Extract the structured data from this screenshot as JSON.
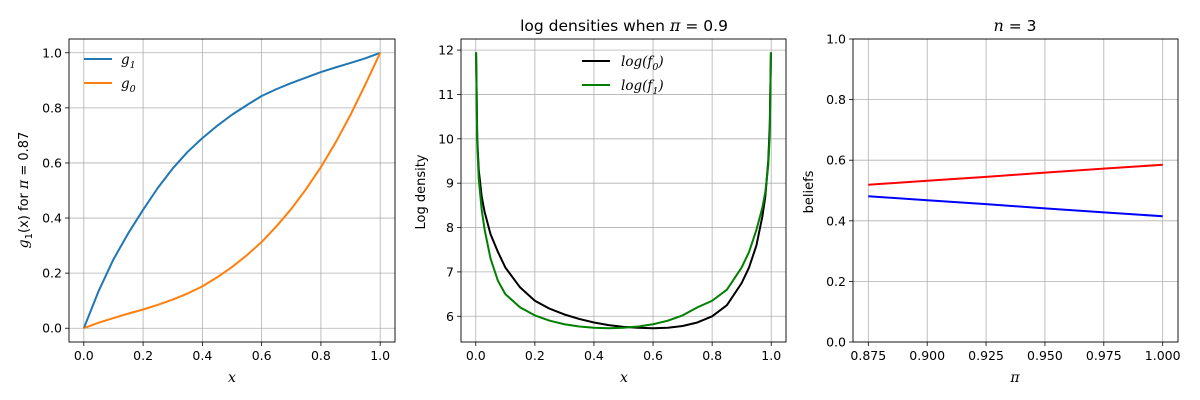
{
  "chart_data": [
    {
      "type": "line",
      "title": "",
      "xlabel": "x",
      "ylabel": "g1(x) for π = 0.87",
      "ylabel_parts": {
        "f": "g",
        "sub": "1",
        "mid": "(x) for ",
        "pi": "π",
        "eq": " = 0.87"
      },
      "xlim": [
        -0.05,
        1.05
      ],
      "ylim": [
        -0.05,
        1.05
      ],
      "xticks": [
        "0.0",
        "0.2",
        "0.4",
        "0.6",
        "0.8",
        "1.0"
      ],
      "yticks": [
        "0.0",
        "0.2",
        "0.4",
        "0.6",
        "0.8",
        "1.0"
      ],
      "grid": true,
      "legend_position": "upper-left",
      "x": [
        0,
        0.05,
        0.1,
        0.15,
        0.2,
        0.25,
        0.3,
        0.35,
        0.4,
        0.45,
        0.5,
        0.55,
        0.6,
        0.65,
        0.7,
        0.75,
        0.8,
        0.85,
        0.9,
        0.95,
        1.0
      ],
      "series": [
        {
          "name": "g1",
          "sub": "1",
          "color": "#1f77b4",
          "values": [
            0.0,
            0.135,
            0.25,
            0.345,
            0.43,
            0.51,
            0.58,
            0.64,
            0.69,
            0.735,
            0.775,
            0.81,
            0.843,
            0.868,
            0.89,
            0.91,
            0.93,
            0.947,
            0.963,
            0.98,
            1.0
          ]
        },
        {
          "name": "g0",
          "sub": "0",
          "color": "#ff7f0e",
          "values": [
            0.0,
            0.02,
            0.037,
            0.053,
            0.068,
            0.085,
            0.104,
            0.126,
            0.152,
            0.185,
            0.222,
            0.265,
            0.313,
            0.37,
            0.433,
            0.505,
            0.585,
            0.675,
            0.775,
            0.885,
            1.0
          ]
        }
      ]
    },
    {
      "type": "line",
      "title": "log densities when π = 0.9",
      "title_parts": {
        "pre": "log densities when ",
        "pi": "π",
        "post": " = 0.9"
      },
      "xlabel": "x",
      "ylabel": "Log density",
      "xlim": [
        -0.05,
        1.05
      ],
      "ylim": [
        5.42,
        12.25
      ],
      "xticks": [
        "0.0",
        "0.2",
        "0.4",
        "0.6",
        "0.8",
        "1.0"
      ],
      "yticks": [
        "6",
        "7",
        "8",
        "9",
        "10",
        "11",
        "12"
      ],
      "grid": true,
      "legend_position": "upper-center",
      "x": [
        0.001,
        0.005,
        0.01,
        0.02,
        0.03,
        0.05,
        0.075,
        0.1,
        0.15,
        0.2,
        0.25,
        0.3,
        0.35,
        0.4,
        0.45,
        0.5,
        0.55,
        0.6,
        0.65,
        0.7,
        0.75,
        0.8,
        0.85,
        0.9,
        0.925,
        0.95,
        0.97,
        0.98,
        0.99,
        0.995,
        0.999
      ],
      "series": [
        {
          "name": "log(f0)",
          "sub": "0",
          "color": "#000000",
          "values": [
            11.95,
            10.0,
            9.3,
            8.7,
            8.35,
            7.85,
            7.45,
            7.1,
            6.65,
            6.35,
            6.17,
            6.04,
            5.94,
            5.86,
            5.8,
            5.76,
            5.74,
            5.73,
            5.74,
            5.78,
            5.86,
            6.0,
            6.25,
            6.75,
            7.1,
            7.6,
            8.25,
            8.7,
            9.5,
            10.3,
            11.95
          ]
        },
        {
          "name": "log(f1)",
          "sub": "1",
          "color": "#008000",
          "values": [
            11.95,
            9.9,
            9.1,
            8.4,
            7.95,
            7.3,
            6.8,
            6.5,
            6.2,
            6.02,
            5.9,
            5.82,
            5.77,
            5.74,
            5.73,
            5.74,
            5.77,
            5.82,
            5.9,
            6.02,
            6.2,
            6.35,
            6.6,
            7.1,
            7.45,
            7.95,
            8.45,
            8.8,
            9.4,
            10.1,
            11.95
          ]
        }
      ]
    },
    {
      "type": "line",
      "title": "n = 3",
      "title_parts": {
        "var": "n",
        "post": " = 3"
      },
      "xlabel": "π",
      "ylabel": "beliefs",
      "xlim": [
        0.8685,
        1.0065
      ],
      "ylim": [
        0.0,
        1.0
      ],
      "xticks": [
        "0.875",
        "0.900",
        "0.925",
        "0.950",
        "0.975",
        "1.000"
      ],
      "yticks": [
        "0.0",
        "0.2",
        "0.4",
        "0.6",
        "0.8",
        "1.0"
      ],
      "grid": true,
      "x": [
        0.875,
        0.9,
        0.925,
        0.95,
        0.975,
        1.0
      ],
      "series": [
        {
          "color": "#ff0000",
          "values": [
            0.519,
            0.532,
            0.545,
            0.559,
            0.572,
            0.585
          ]
        },
        {
          "color": "#0000ff",
          "values": [
            0.481,
            0.468,
            0.455,
            0.441,
            0.428,
            0.415
          ]
        }
      ]
    }
  ]
}
